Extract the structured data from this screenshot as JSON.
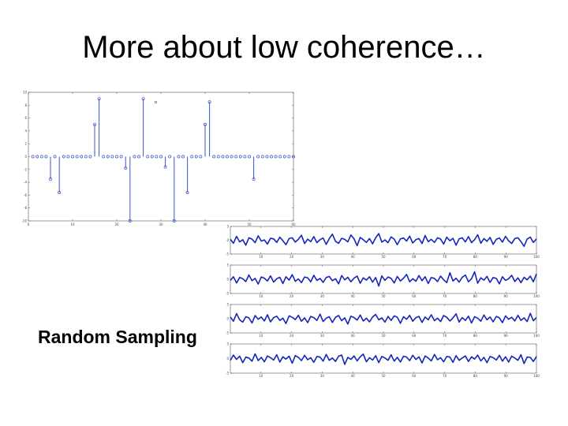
{
  "slide": {
    "title": "More about low coherence…",
    "caption": "Random Sampling"
  },
  "colors": {
    "stem": "#3b55c6",
    "signal": "#1426b8",
    "axis": "#555555"
  },
  "chart_data": [
    {
      "type": "stem",
      "xlim": [
        0,
        60
      ],
      "ylim": [
        -10,
        10
      ],
      "xticks": [
        0,
        10,
        20,
        30,
        40,
        50,
        60
      ],
      "yticks": [
        10,
        8,
        6,
        4,
        2,
        0,
        -2,
        -4,
        -6,
        -8,
        -10
      ],
      "n": 60,
      "spikes": [
        {
          "x": 5,
          "y": -3.5
        },
        {
          "x": 7,
          "y": -5.6
        },
        {
          "x": 15,
          "y": 5
        },
        {
          "x": 16,
          "y": 9
        },
        {
          "x": 22,
          "y": -1.8
        },
        {
          "x": 23,
          "y": -10
        },
        {
          "x": 26,
          "y": 9
        },
        {
          "x": 31,
          "y": -1.6
        },
        {
          "x": 33,
          "y": -10
        },
        {
          "x": 36,
          "y": -5.6
        },
        {
          "x": 40,
          "y": 5
        },
        {
          "x": 41,
          "y": 8.5
        },
        {
          "x": 51,
          "y": -3.5
        }
      ],
      "annotation": "M"
    },
    {
      "type": "line",
      "xlim": [
        0,
        100
      ],
      "ylim": [
        -5,
        5
      ],
      "xticks": [
        10,
        20,
        30,
        40,
        50,
        60,
        70,
        80,
        90,
        100
      ],
      "yticks": [
        5,
        0,
        -5
      ],
      "series": [
        {
          "values": [
            0.3,
            -1.1,
            1.4,
            -0.6,
            0.2,
            -1.8,
            0.9,
            0.4,
            -0.9,
            1.6,
            -0.3,
            0.1,
            -1.4,
            0.7,
            0.5,
            -0.8,
            1.1,
            -0.2,
            -1.6,
            0.6,
            0.9,
            -0.7,
            0.3,
            1.8,
            -1.2,
            0.4,
            -0.5,
            1.3,
            -0.9,
            0.2,
            0.8,
            -1.5,
            0.6,
            2.2,
            -0.4,
            -1.1,
            0.7,
            0.3,
            -0.6,
            1.9,
            0.5,
            -2.0,
            1.0,
            0.2,
            -0.8,
            0.6,
            -1.3,
            0.9,
            2.4,
            -0.7,
            0.1,
            -0.9,
            1.2,
            0.4,
            -1.6,
            0.5,
            0.8,
            -0.3,
            1.5,
            -1.0,
            0.2,
            0.6,
            -1.2,
            1.7,
            -0.5,
            0.3,
            -0.8,
            0.9,
            0.4,
            -1.4,
            1.1,
            -0.2,
            0.7,
            -1.8,
            0.5,
            0.9,
            -0.6,
            1.3,
            -0.9,
            0.2,
            2.0,
            -1.1,
            0.6,
            -0.4,
            1.0,
            -1.5,
            0.3,
            0.8,
            -0.7,
            1.4,
            -0.2,
            -1.2,
            0.6,
            0.9,
            -0.5,
            -2.2,
            0.4,
            1.1,
            -0.8,
            0.5
          ]
        },
        {
          "values": [
            -0.4,
            0.9,
            -1.3,
            0.6,
            0.2,
            -0.8,
            1.5,
            -0.5,
            0.3,
            -1.7,
            0.8,
            0.4,
            -0.6,
            1.2,
            -1.0,
            0.2,
            0.7,
            -1.5,
            0.9,
            -0.3,
            1.6,
            -0.7,
            0.1,
            -1.2,
            0.8,
            0.5,
            -0.9,
            1.4,
            -0.4,
            0.3,
            -1.1,
            0.6,
            1.0,
            -0.5,
            0.2,
            -1.6,
            1.3,
            -0.2,
            0.7,
            -0.9,
            0.4,
            1.1,
            -1.4,
            0.5,
            -0.3,
            0.9,
            -1.0,
            0.6,
            -2.4,
            1.2,
            -0.4,
            0.8,
            0.3,
            -1.3,
            1.0,
            -0.6,
            0.4,
            1.7,
            -0.9,
            0.2,
            -0.7,
            1.3,
            -0.5,
            0.9,
            -1.5,
            0.6,
            0.3,
            -0.8,
            1.1,
            -0.2,
            -1.2,
            2.3,
            -0.6,
            0.4,
            -1.0,
            0.7,
            1.5,
            -0.9,
            0.2,
            2.6,
            -1.4,
            0.5,
            -0.3,
            1.0,
            -1.1,
            0.6,
            0.3,
            -1.6,
            0.9,
            -0.4,
            0.2,
            1.4,
            -0.8,
            0.5,
            -1.2,
            0.7,
            -0.2,
            1.1,
            -0.9,
            1.9
          ]
        },
        {
          "values": [
            0.6,
            -0.9,
            1.8,
            -0.4,
            -1.2,
            0.7,
            0.3,
            -1.5,
            1.1,
            -0.2,
            0.6,
            -0.8,
            1.4,
            -1.1,
            0.4,
            0.9,
            -0.6,
            0.2,
            -1.7,
            1.0,
            0.5,
            -0.3,
            1.2,
            -0.9,
            0.3,
            -1.4,
            0.8,
            0.4,
            -0.6,
            1.6,
            -1.0,
            0.2,
            0.7,
            -1.3,
            0.5,
            1.1,
            -0.7,
            0.3,
            -1.9,
            0.9,
            0.4,
            -0.5,
            1.3,
            -0.8,
            0.2,
            -1.1,
            0.6,
            1.5,
            -0.4,
            0.3,
            -1.2,
            0.8,
            -0.6,
            1.0,
            0.5,
            -1.6,
            0.7,
            -0.2,
            1.2,
            -0.9,
            0.4,
            0.8,
            -1.3,
            0.6,
            -0.4,
            1.4,
            -0.7,
            0.2,
            -1.0,
            1.1,
            0.5,
            -0.8,
            0.3,
            1.7,
            -1.2,
            0.4,
            -0.6,
            0.9,
            -1.5,
            0.7,
            0.2,
            -0.9,
            1.3,
            -0.4,
            0.6,
            -1.1,
            0.8,
            0.3,
            -1.4,
            1.0,
            -0.2,
            0.5,
            -0.8,
            1.2,
            -0.6,
            0.3,
            -1.0,
            1.9,
            -0.7,
            0.4
          ]
        },
        {
          "values": [
            -0.6,
            1.2,
            -0.3,
            0.8,
            -1.4,
            0.5,
            0.2,
            -0.9,
            1.6,
            -0.7,
            0.4,
            -1.1,
            0.9,
            0.3,
            -0.5,
            1.3,
            -1.2,
            0.6,
            -0.2,
            0.8,
            -1.6,
            1.0,
            0.4,
            -0.7,
            1.1,
            -0.4,
            0.3,
            -1.3,
            0.7,
            0.5,
            -0.9,
            1.4,
            -0.6,
            0.2,
            -1.0,
            0.8,
            1.2,
            -2.0,
            0.4,
            -0.3,
            0.9,
            -0.8,
            0.6,
            1.5,
            -1.1,
            0.3,
            -0.5,
            1.0,
            -1.4,
            0.7,
            0.2,
            -0.6,
            1.3,
            -0.9,
            0.4,
            -1.2,
            0.8,
            0.5,
            -0.7,
            1.1,
            -0.3,
            0.6,
            -1.5,
            0.9,
            0.2,
            -0.8,
            1.4,
            -0.4,
            0.3,
            -1.1,
            0.7,
            0.5,
            -1.3,
            1.0,
            -0.6,
            0.2,
            0.9,
            -1.0,
            0.6,
            -0.2,
            1.2,
            -0.8,
            0.4,
            -1.4,
            0.7,
            0.3,
            -0.5,
            1.1,
            -0.9,
            0.6,
            -1.2,
            0.8,
            0.2,
            -0.6,
            1.3,
            -1.7,
            0.5,
            0.4,
            -1.0,
            0.7
          ]
        }
      ]
    }
  ]
}
